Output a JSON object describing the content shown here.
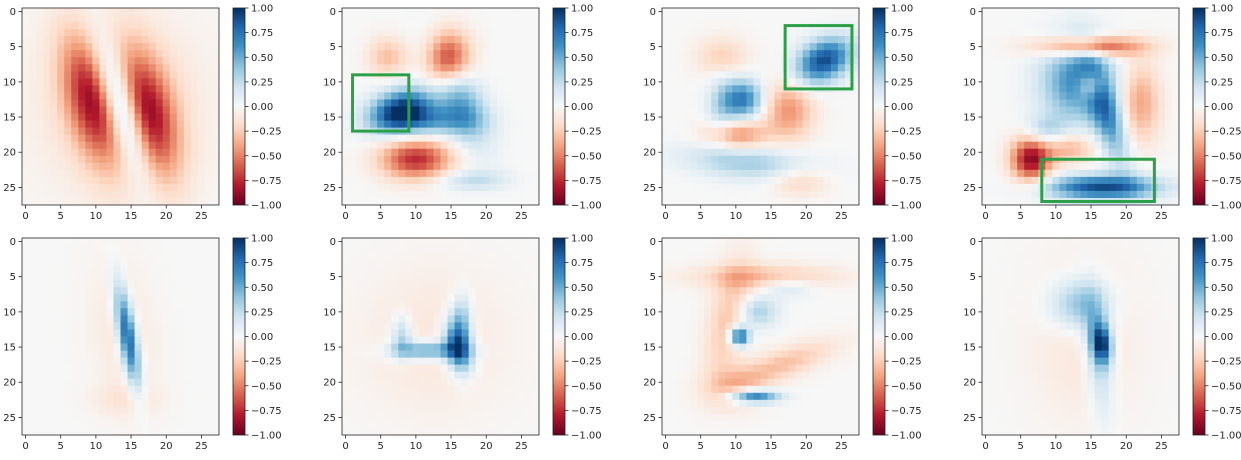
{
  "chart_data": {
    "type": "heatmap",
    "layout": "2 rows x 4 columns",
    "colormap": "RdBu",
    "grid": false,
    "image_shape": [
      28,
      28
    ],
    "axis_ticks": {
      "x": [
        0,
        5,
        10,
        15,
        20,
        25
      ],
      "y": [
        0,
        5,
        10,
        15,
        20,
        25
      ]
    },
    "colorbar": {
      "min": -1.0,
      "max": 1.0,
      "ticks": [
        1.0,
        0.75,
        0.5,
        0.25,
        0.0,
        -0.25,
        -0.5,
        -0.75,
        -1.0
      ],
      "tick_labels": [
        "1.00",
        "0.75",
        "0.50",
        "0.25",
        "0.00",
        "−0.25",
        "−0.50",
        "−0.75",
        "−1.00"
      ]
    },
    "highlight_color": "#2ca048",
    "panels": [
      {
        "row": 0,
        "col": 0,
        "digit": "1",
        "blobs": [
          {
            "cx": 13.5,
            "cy": 13.5,
            "sx": 1.7,
            "sy": 6.5,
            "rot": 0.3,
            "v": 0.75
          },
          {
            "cx": 9.5,
            "cy": 12.5,
            "sx": 2.6,
            "sy": 6.5,
            "rot": 0.25,
            "v": -0.75
          },
          {
            "cx": 17.5,
            "cy": 14.5,
            "sx": 2.6,
            "sy": 6.5,
            "rot": 0.25,
            "v": -0.75
          },
          {
            "cx": 13.5,
            "cy": 13.5,
            "sx": 8.5,
            "sy": 9.0,
            "rot": 0.0,
            "v": -0.18
          }
        ],
        "highlight": null
      },
      {
        "row": 0,
        "col": 1,
        "digit": "4",
        "blobs": [
          {
            "cx": 8.0,
            "cy": 14.0,
            "sx": 3.2,
            "sy": 2.0,
            "rot": 0.3,
            "v": 0.95
          },
          {
            "cx": 16.0,
            "cy": 12.0,
            "sx": 2.2,
            "sy": 5.0,
            "rot": 0.4,
            "v": 0.55
          },
          {
            "cx": 12.0,
            "cy": 15.5,
            "sx": 4.5,
            "sy": 1.5,
            "rot": 0.0,
            "v": 0.45
          },
          {
            "cx": 18.0,
            "cy": 24.0,
            "sx": 3.5,
            "sy": 1.0,
            "rot": 0.0,
            "v": 0.25
          },
          {
            "cx": 14.5,
            "cy": 7.0,
            "sx": 2.2,
            "sy": 2.8,
            "rot": 0.0,
            "v": -0.9
          },
          {
            "cx": 10.0,
            "cy": 21.0,
            "sx": 3.5,
            "sy": 2.0,
            "rot": 0.0,
            "v": -0.75
          },
          {
            "cx": 6.0,
            "cy": 6.5,
            "sx": 2.0,
            "sy": 2.0,
            "rot": 0.0,
            "v": -0.3
          }
        ],
        "highlight": {
          "x0": 1.5,
          "x1": 9.5,
          "y0": 9.5,
          "y1": 17.5
        }
      },
      {
        "row": 0,
        "col": 2,
        "digit": "5",
        "blobs": [
          {
            "cx": 22.5,
            "cy": 7.0,
            "sx": 3.0,
            "sy": 2.0,
            "rot": 0.5,
            "v": 0.9
          },
          {
            "cx": 11.0,
            "cy": 12.5,
            "sx": 2.0,
            "sy": 2.0,
            "rot": 0.0,
            "v": 0.7
          },
          {
            "cx": 12.0,
            "cy": 21.5,
            "sx": 6.5,
            "sy": 1.7,
            "rot": -0.1,
            "v": 0.35
          },
          {
            "cx": 8.0,
            "cy": 14.0,
            "sx": 1.5,
            "sy": 3.5,
            "rot": 0.0,
            "v": 0.25
          },
          {
            "cx": 10.0,
            "cy": 17.5,
            "sx": 3.0,
            "sy": 1.5,
            "rot": 0.0,
            "v": -0.5
          },
          {
            "cx": 17.5,
            "cy": 14.0,
            "sx": 2.5,
            "sy": 3.0,
            "rot": 0.0,
            "v": -0.45
          },
          {
            "cx": 8.0,
            "cy": 6.5,
            "sx": 2.5,
            "sy": 2.0,
            "rot": 0.0,
            "v": -0.25
          },
          {
            "cx": 19.0,
            "cy": 24.0,
            "sx": 3.0,
            "sy": 1.5,
            "rot": 0.0,
            "v": -0.25
          }
        ],
        "highlight": {
          "x0": 17.5,
          "x1": 27.0,
          "y0": 2.5,
          "y1": 11.5
        }
      },
      {
        "row": 0,
        "col": 3,
        "digit": "9",
        "blobs": [
          {
            "cx": 13.0,
            "cy": 10.0,
            "sx": 3.5,
            "sy": 4.0,
            "rot": 0.0,
            "v": 0.65
          },
          {
            "cx": 17.0,
            "cy": 14.0,
            "sx": 1.5,
            "sy": 5.5,
            "rot": 0.3,
            "v": 0.65
          },
          {
            "cx": 16.5,
            "cy": 25.0,
            "sx": 5.5,
            "sy": 1.2,
            "rot": 0.0,
            "v": 0.9
          },
          {
            "cx": 8.5,
            "cy": 17.0,
            "sx": 2.0,
            "sy": 1.5,
            "rot": 0.0,
            "v": 0.3
          },
          {
            "cx": 15.0,
            "cy": 5.0,
            "sx": 5.0,
            "sy": 1.0,
            "rot": 0.0,
            "v": -0.75
          },
          {
            "cx": 6.5,
            "cy": 21.0,
            "sx": 2.0,
            "sy": 2.2,
            "rot": 0.0,
            "v": -0.9
          },
          {
            "cx": 15.0,
            "cy": 10.5,
            "sx": 1.3,
            "sy": 1.5,
            "rot": 0.0,
            "v": -0.55
          },
          {
            "cx": 22.0,
            "cy": 13.0,
            "sx": 2.0,
            "sy": 4.0,
            "rot": 0.0,
            "v": -0.4
          },
          {
            "cx": 12.0,
            "cy": 19.5,
            "sx": 2.5,
            "sy": 1.5,
            "rot": 0.0,
            "v": -0.35
          }
        ],
        "highlight": {
          "x0": 8.5,
          "x1": 24.5,
          "y0": 21.5,
          "y1": 27.5
        }
      },
      {
        "row": 1,
        "col": 0,
        "digit": "1",
        "blobs": [
          {
            "cx": 14.5,
            "cy": 13.5,
            "sx": 0.9,
            "sy": 5.0,
            "rot": 0.17,
            "v": 0.9
          },
          {
            "cx": 14.0,
            "cy": 13.5,
            "sx": 3.2,
            "sy": 7.8,
            "rot": 0.12,
            "v": -0.12
          },
          {
            "cx": 14.0,
            "cy": 22.5,
            "sx": 3.5,
            "sy": 1.5,
            "rot": 0.0,
            "v": -0.1
          }
        ],
        "highlight": null
      },
      {
        "row": 1,
        "col": 1,
        "digit": "4",
        "blobs": [
          {
            "cx": 16.0,
            "cy": 15.0,
            "sx": 1.3,
            "sy": 2.5,
            "rot": 0.2,
            "v": 0.9
          },
          {
            "cx": 11.5,
            "cy": 15.5,
            "sx": 3.5,
            "sy": 0.9,
            "rot": 0.0,
            "v": 0.6
          },
          {
            "cx": 8.0,
            "cy": 13.5,
            "sx": 1.0,
            "sy": 2.0,
            "rot": 0.0,
            "v": 0.35
          },
          {
            "cx": 16.5,
            "cy": 11.0,
            "sx": 1.0,
            "sy": 2.5,
            "rot": 0.0,
            "v": 0.4
          },
          {
            "cx": 12.5,
            "cy": 14.0,
            "sx": 7.5,
            "sy": 7.5,
            "rot": 0.0,
            "v": -0.12
          }
        ],
        "highlight": null
      },
      {
        "row": 1,
        "col": 2,
        "digit": "5",
        "blobs": [
          {
            "cx": 10.5,
            "cy": 13.5,
            "sx": 1.0,
            "sy": 1.0,
            "rot": 0.0,
            "v": 0.9
          },
          {
            "cx": 12.5,
            "cy": 22.0,
            "sx": 2.5,
            "sy": 0.7,
            "rot": 0.0,
            "v": 0.8
          },
          {
            "cx": 13.0,
            "cy": 10.0,
            "sx": 2.0,
            "sy": 1.5,
            "rot": 0.0,
            "v": 0.35
          },
          {
            "cx": 17.5,
            "cy": 6.5,
            "sx": 2.5,
            "sy": 1.0,
            "rot": 0.0,
            "v": 0.2
          },
          {
            "cx": 14.0,
            "cy": 5.0,
            "sx": 7.0,
            "sy": 1.2,
            "rot": 0.0,
            "v": -0.3
          },
          {
            "cx": 9.0,
            "cy": 11.0,
            "sx": 2.0,
            "sy": 6.0,
            "rot": -0.2,
            "v": -0.3
          },
          {
            "cx": 16.5,
            "cy": 17.5,
            "sx": 5.5,
            "sy": 1.5,
            "rot": 0.35,
            "v": -0.3
          },
          {
            "cx": 10.0,
            "cy": 21.0,
            "sx": 3.0,
            "sy": 2.0,
            "rot": 0.0,
            "v": -0.25
          }
        ],
        "highlight": null
      },
      {
        "row": 1,
        "col": 3,
        "digit": "9",
        "blobs": [
          {
            "cx": 16.5,
            "cy": 14.5,
            "sx": 1.0,
            "sy": 2.0,
            "rot": 0.1,
            "v": 0.9
          },
          {
            "cx": 13.5,
            "cy": 9.0,
            "sx": 3.0,
            "sy": 2.5,
            "rot": 0.0,
            "v": 0.45
          },
          {
            "cx": 16.0,
            "cy": 16.0,
            "sx": 1.3,
            "sy": 6.0,
            "rot": 0.1,
            "v": 0.35
          },
          {
            "cx": 14.0,
            "cy": 14.0,
            "sx": 5.5,
            "sy": 8.5,
            "rot": 0.0,
            "v": -0.12
          }
        ],
        "highlight": null
      }
    ]
  }
}
